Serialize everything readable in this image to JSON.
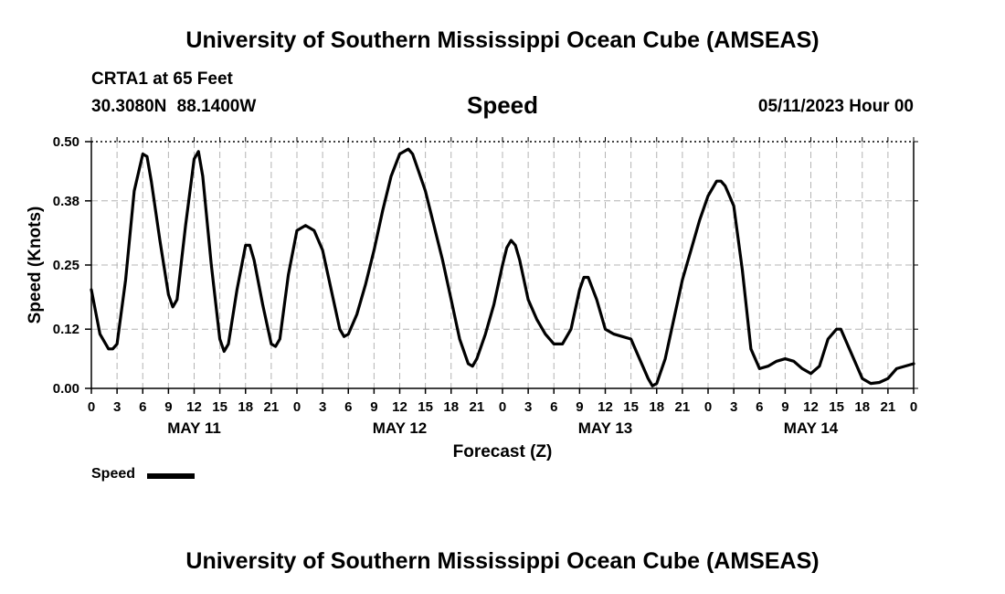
{
  "header": {
    "title_top": "University of Southern Mississippi Ocean Cube (AMSEAS)",
    "title_bottom": "University of Southern Mississippi Ocean Cube (AMSEAS)",
    "station": "CRTA1 at 65 Feet",
    "coordinates": "30.3080N  88.1400W",
    "parameter": "Speed",
    "date": "05/11/2023 Hour 00"
  },
  "chart_data": {
    "type": "line",
    "title": "Speed",
    "xlabel": "Forecast (Z)",
    "ylabel": "Speed (Knots)",
    "ylim": [
      0,
      0.5
    ],
    "xlim_hours": [
      0,
      96
    ],
    "yticks": [
      "0.00",
      "0.12",
      "0.25",
      "0.38",
      "0.50"
    ],
    "xtick_labels": [
      "0",
      "3",
      "6",
      "9",
      "12",
      "15",
      "18",
      "21",
      "0",
      "3",
      "6",
      "9",
      "12",
      "15",
      "18",
      "21",
      "0",
      "3",
      "6",
      "9",
      "12",
      "15",
      "18",
      "21",
      "0",
      "3",
      "6",
      "9",
      "12",
      "15",
      "18",
      "21",
      "0"
    ],
    "day_labels": [
      {
        "label": "MAY 11",
        "center_hour": 12
      },
      {
        "label": "MAY 12",
        "center_hour": 36
      },
      {
        "label": "MAY 13",
        "center_hour": 60
      },
      {
        "label": "MAY 14",
        "center_hour": 84
      }
    ],
    "grid": true,
    "legend": {
      "label": "Speed",
      "placement": "bottom-left"
    },
    "series": [
      {
        "name": "Speed",
        "points": [
          [
            0,
            0.2
          ],
          [
            1,
            0.11
          ],
          [
            2,
            0.08
          ],
          [
            2.5,
            0.08
          ],
          [
            3,
            0.09
          ],
          [
            4,
            0.22
          ],
          [
            5,
            0.4
          ],
          [
            6,
            0.475
          ],
          [
            6.5,
            0.47
          ],
          [
            7,
            0.42
          ],
          [
            8,
            0.3
          ],
          [
            9,
            0.19
          ],
          [
            9.5,
            0.165
          ],
          [
            10,
            0.18
          ],
          [
            11,
            0.33
          ],
          [
            12,
            0.465
          ],
          [
            12.5,
            0.48
          ],
          [
            13,
            0.43
          ],
          [
            14,
            0.25
          ],
          [
            15,
            0.1
          ],
          [
            15.5,
            0.075
          ],
          [
            16,
            0.09
          ],
          [
            17,
            0.2
          ],
          [
            18,
            0.29
          ],
          [
            18.5,
            0.29
          ],
          [
            19,
            0.26
          ],
          [
            20,
            0.17
          ],
          [
            21,
            0.09
          ],
          [
            21.5,
            0.085
          ],
          [
            22,
            0.1
          ],
          [
            23,
            0.23
          ],
          [
            24,
            0.32
          ],
          [
            25,
            0.33
          ],
          [
            26,
            0.32
          ],
          [
            27,
            0.28
          ],
          [
            28,
            0.2
          ],
          [
            29,
            0.12
          ],
          [
            29.5,
            0.105
          ],
          [
            30,
            0.11
          ],
          [
            31,
            0.15
          ],
          [
            32,
            0.21
          ],
          [
            33,
            0.28
          ],
          [
            34,
            0.36
          ],
          [
            35,
            0.43
          ],
          [
            36,
            0.475
          ],
          [
            37,
            0.485
          ],
          [
            37.5,
            0.475
          ],
          [
            38,
            0.45
          ],
          [
            39,
            0.4
          ],
          [
            40,
            0.33
          ],
          [
            41,
            0.26
          ],
          [
            42,
            0.18
          ],
          [
            43,
            0.1
          ],
          [
            44,
            0.05
          ],
          [
            44.5,
            0.045
          ],
          [
            45,
            0.06
          ],
          [
            46,
            0.11
          ],
          [
            47,
            0.17
          ],
          [
            48,
            0.25
          ],
          [
            48.5,
            0.285
          ],
          [
            49,
            0.3
          ],
          [
            49.5,
            0.29
          ],
          [
            50,
            0.26
          ],
          [
            51,
            0.18
          ],
          [
            52,
            0.14
          ],
          [
            53,
            0.11
          ],
          [
            54,
            0.09
          ],
          [
            55,
            0.09
          ],
          [
            56,
            0.12
          ],
          [
            57,
            0.2
          ],
          [
            57.5,
            0.225
          ],
          [
            58,
            0.225
          ],
          [
            59,
            0.18
          ],
          [
            60,
            0.12
          ],
          [
            61,
            0.11
          ],
          [
            62,
            0.105
          ],
          [
            63,
            0.1
          ],
          [
            64,
            0.06
          ],
          [
            65,
            0.02
          ],
          [
            65.5,
            0.005
          ],
          [
            66,
            0.01
          ],
          [
            67,
            0.06
          ],
          [
            68,
            0.14
          ],
          [
            69,
            0.22
          ],
          [
            70,
            0.28
          ],
          [
            71,
            0.34
          ],
          [
            72,
            0.39
          ],
          [
            73,
            0.42
          ],
          [
            73.5,
            0.42
          ],
          [
            74,
            0.41
          ],
          [
            75,
            0.37
          ],
          [
            76,
            0.24
          ],
          [
            77,
            0.08
          ],
          [
            78,
            0.04
          ],
          [
            79,
            0.045
          ],
          [
            80,
            0.055
          ],
          [
            81,
            0.06
          ],
          [
            82,
            0.055
          ],
          [
            83,
            0.04
          ],
          [
            84,
            0.03
          ],
          [
            85,
            0.045
          ],
          [
            86,
            0.1
          ],
          [
            87,
            0.12
          ],
          [
            87.5,
            0.12
          ],
          [
            88,
            0.1
          ],
          [
            89,
            0.06
          ],
          [
            90,
            0.02
          ],
          [
            91,
            0.01
          ],
          [
            92,
            0.012
          ],
          [
            93,
            0.02
          ],
          [
            94,
            0.04
          ],
          [
            96,
            0.05
          ]
        ]
      }
    ]
  }
}
